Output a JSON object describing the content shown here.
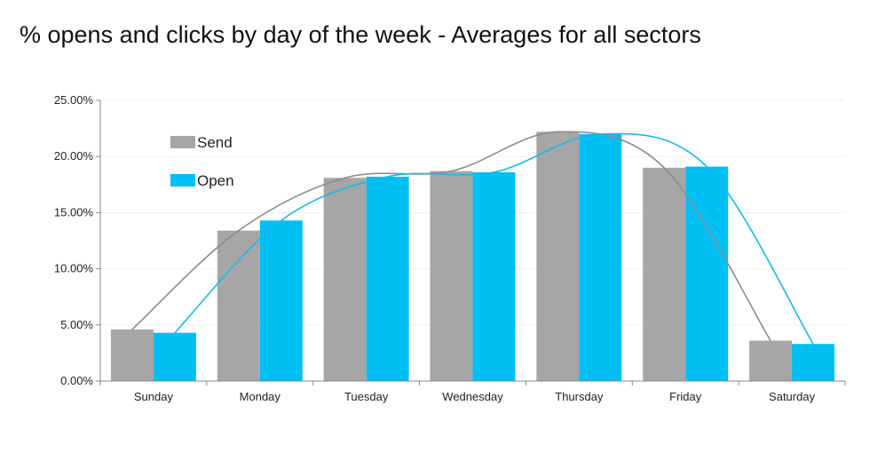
{
  "chart_data": {
    "type": "bar",
    "title": "% opens and clicks by day of the week - Averages for all sectors",
    "categories": [
      "Sunday",
      "Monday",
      "Tuesday",
      "Wednesday",
      "Thursday",
      "Friday",
      "Saturday"
    ],
    "series": [
      {
        "name": "Send",
        "color": "#a6a6a6",
        "line_color": "#8c8c8c",
        "values": [
          4.6,
          13.4,
          18.1,
          18.7,
          22.2,
          19.0,
          3.6
        ]
      },
      {
        "name": "Open",
        "color": "#00bff3",
        "line_color": "#1ab8e8",
        "values": [
          4.3,
          14.3,
          18.2,
          18.6,
          22.0,
          19.1,
          3.3
        ]
      }
    ],
    "y_ticks": [
      "0.00%",
      "5.00%",
      "10.00%",
      "15.00%",
      "20.00%",
      "25.00%"
    ],
    "ylim": [
      0,
      25
    ],
    "grid": true,
    "smoothed_trend_lines": true,
    "legend_position": "top-left"
  }
}
